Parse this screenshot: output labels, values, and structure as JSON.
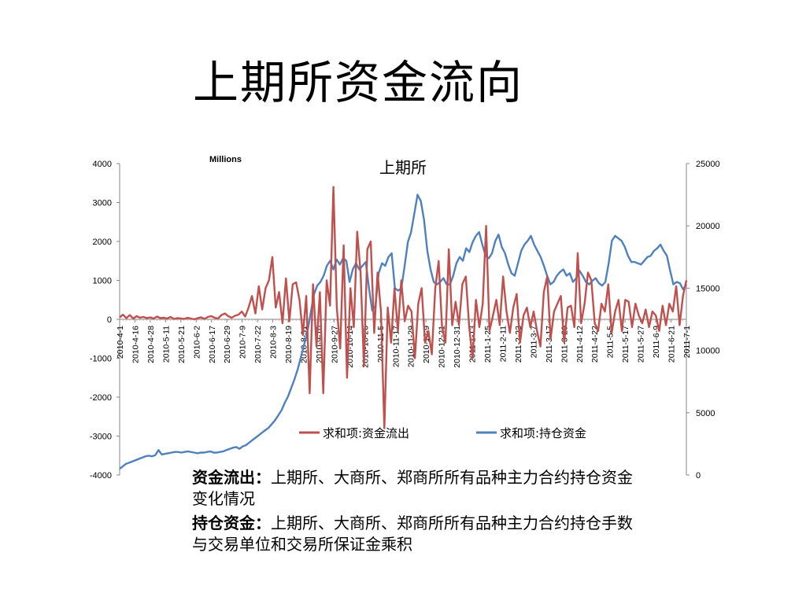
{
  "slide": {
    "title": "上期所资金流向"
  },
  "notes": [
    {
      "term": "资金流出：",
      "text": "上期所、大商所、郑商所所有品种主力合约持仓资金变化情况"
    },
    {
      "term": "持仓资金：",
      "text": "上期所、大商所、郑商所所有品种主力合约持仓手数与交易单位和交易所保证金乘积"
    }
  ],
  "chart_data": {
    "type": "line",
    "title": "上期所",
    "unit_label": "Millions",
    "x_labels": [
      "2010-4-1",
      "2010-4-16",
      "2010-4-28",
      "2010-5-11",
      "2010-5-21",
      "2010-6-2",
      "2010-6-17",
      "2010-6-29",
      "2010-7-9",
      "2010-7-22",
      "2010-8-3",
      "2010-8-19",
      "2010-8-31",
      "2010-9-10",
      "2010-9-27",
      "2010-10-14",
      "2010-10-26",
      "2010-11-5",
      "2010-11-17",
      "2010-11-29",
      "2010-12-9",
      "2010-12-21",
      "2010-12-31",
      "2011-1-13",
      "2011-1-25",
      "2011-2-11",
      "2011-2-23",
      "2011-3-7",
      "2011-3-17",
      "2011-3-29",
      "2011-4-12",
      "2011-4-22",
      "2011-5-5",
      "2011-5-17",
      "2011-5-27",
      "2011-6-9",
      "2011-6-21",
      "2011-7-1"
    ],
    "y_left": {
      "min": -4000,
      "max": 4000,
      "ticks": [
        4000,
        3000,
        2000,
        1000,
        0,
        -1000,
        -2000,
        -3000,
        -4000
      ]
    },
    "y_right": {
      "min": 0,
      "max": 25000,
      "ticks": [
        25000,
        20000,
        15000,
        10000,
        5000,
        0
      ]
    },
    "colors": {
      "outflow": "#c0504d",
      "holding": "#4f81bd"
    },
    "series": [
      {
        "name": "求和项:资金流出",
        "axis": "left",
        "values": [
          50,
          120,
          30,
          110,
          20,
          80,
          40,
          60,
          30,
          50,
          20,
          70,
          30,
          40,
          20,
          60,
          10,
          30,
          20,
          10,
          40,
          20,
          0,
          30,
          50,
          10,
          60,
          80,
          40,
          20,
          110,
          150,
          80,
          40,
          90,
          120,
          200,
          70,
          300,
          600,
          150,
          850,
          250,
          800,
          1000,
          1600,
          300,
          700,
          -100,
          1050,
          -50,
          900,
          950,
          500,
          -400,
          600,
          -1900,
          900,
          -700,
          700,
          -1900,
          1000,
          350,
          3400,
          300,
          -750,
          1900,
          -1500,
          800,
          -200,
          2250,
          1200,
          -1200,
          1800,
          2000,
          -350,
          1200,
          200,
          -2800,
          300,
          -600,
          800,
          -300,
          1000,
          -50,
          350,
          200,
          -1000,
          400,
          800,
          -600,
          -300,
          -900,
          800,
          1500,
          -200,
          -600,
          1800,
          -150,
          450,
          -150,
          900,
          1100,
          -200,
          -1000,
          500,
          -200,
          400,
          2400,
          -300,
          100,
          500,
          -150,
          1100,
          200,
          -350,
          300,
          650,
          -600,
          100,
          300,
          -200,
          200,
          -300,
          -700,
          700,
          1100,
          -500,
          200,
          400,
          600,
          -600,
          300,
          350,
          -200,
          1700,
          -100,
          400,
          1200,
          1000,
          -100,
          -300,
          400,
          200,
          900,
          -350,
          200,
          500,
          -300,
          500,
          450,
          -200,
          400,
          100,
          -100,
          250,
          -200,
          200,
          100,
          -300,
          350,
          -150,
          400,
          200,
          850,
          -150,
          600,
          1000
        ]
      },
      {
        "name": "求和项:持仓资金",
        "axis": "right",
        "values": [
          500,
          700,
          900,
          1000,
          1100,
          1200,
          1300,
          1400,
          1500,
          1550,
          1500,
          1600,
          2000,
          1650,
          1700,
          1750,
          1800,
          1850,
          1850,
          1800,
          1850,
          1900,
          1850,
          1800,
          1750,
          1800,
          1800,
          1850,
          1900,
          1800,
          1800,
          1850,
          1900,
          2000,
          2100,
          2200,
          2250,
          2100,
          2300,
          2400,
          2600,
          2800,
          3000,
          3200,
          3400,
          3600,
          3800,
          4100,
          4400,
          4800,
          5200,
          5800,
          6300,
          7000,
          7700,
          8500,
          9500,
          10500,
          11500,
          13000,
          14500,
          15200,
          15500,
          16000,
          16800,
          17200,
          16500,
          17300,
          16900,
          17400,
          17200,
          15500,
          16500,
          17000,
          16500,
          16800,
          17100,
          15000,
          13200,
          13600,
          16200,
          17000,
          16800,
          17500,
          17800,
          15000,
          14800,
          15000,
          16800,
          18700,
          19500,
          21000,
          22500,
          22000,
          20500,
          18000,
          16500,
          15500,
          15300,
          15500,
          15800,
          15300,
          15300,
          16000,
          17000,
          17500,
          17200,
          18200,
          17900,
          18700,
          19200,
          19500,
          18500,
          17600,
          17400,
          17800,
          18800,
          19300,
          18300,
          17800,
          16900,
          16200,
          16000,
          17000,
          18000,
          18500,
          18800,
          19200,
          18500,
          18000,
          17500,
          16800,
          16000,
          15300,
          15500,
          16000,
          16300,
          16500,
          16000,
          16200,
          15500,
          15800,
          16400,
          16000,
          15500,
          15300,
          15600,
          15800,
          15400,
          15200,
          15500,
          17000,
          18800,
          19200,
          19000,
          18800,
          18300,
          17600,
          17100,
          17100,
          17000,
          16900,
          17200,
          17500,
          17600,
          18000,
          18200,
          18500,
          18000,
          17600,
          16400,
          15300,
          15500,
          15400,
          14900,
          15300
        ]
      }
    ]
  }
}
